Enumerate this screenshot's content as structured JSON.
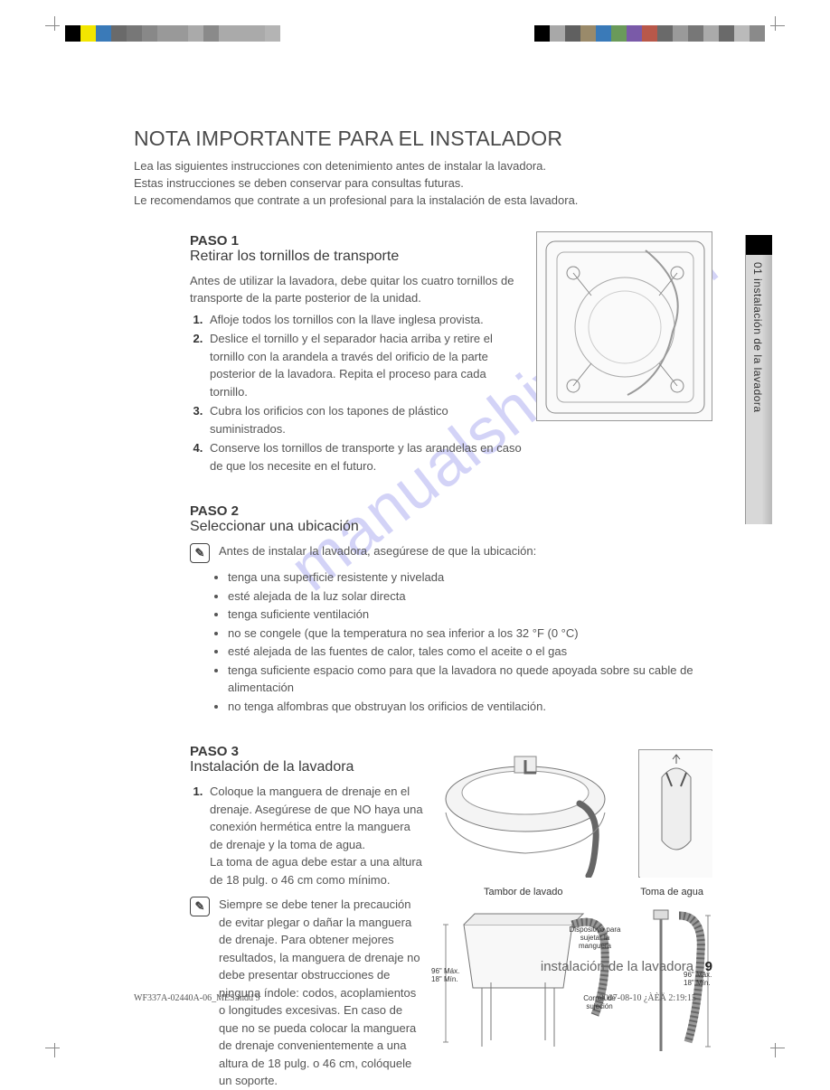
{
  "colorbars": {
    "left": [
      "#000000",
      "#f2e600",
      "#3a7ab8",
      "#6a6a6a",
      "#777777",
      "#888888",
      "#999999",
      "#999999",
      "#aaaaaa",
      "#8a8a8a",
      "#aaaaaa",
      "#aaaaaa",
      "#aaaaaa",
      "#b4b4b4"
    ],
    "right": [
      "#ffffff",
      "#000000",
      "#a8a8a8",
      "#606060",
      "#9a8a6a",
      "#3a7ab8",
      "#6a9a5a",
      "#7a5aa8",
      "#b8584a",
      "#6a6a6a",
      "#9a9a9a",
      "#777777",
      "#aaaaaa",
      "#6a6a6a",
      "#bababa",
      "#8a8a8a"
    ]
  },
  "side_tab": "01 instalación de la lavadora",
  "title": "NOTA IMPORTANTE PARA EL INSTALADOR",
  "intro_lines": [
    "Lea las siguientes instrucciones con detenimiento antes de instalar la lavadora.",
    "Estas instrucciones se deben conservar para consultas futuras.",
    "Le recomendamos que contrate a un profesional para la instalación de esta lavadora."
  ],
  "paso1": {
    "label": "PASO 1",
    "subtitle": "Retirar los tornillos de transporte",
    "lead": "Antes de utilizar la lavadora, debe quitar los cuatro tornillos de transporte de la parte posterior de la unidad.",
    "items": [
      "Afloje todos los tornillos con la llave inglesa provista.",
      "Deslice el tornillo y el separador hacia arriba y retire el tornillo con la arandela a través del orificio de la parte posterior de la lavadora. Repita el proceso para cada tornillo.",
      "Cubra los orificios con los tapones de plástico suministrados.",
      "Conserve los tornillos de transporte y las arandelas en caso de que los necesite en el futuro."
    ]
  },
  "paso2": {
    "label": "PASO 2",
    "subtitle": "Seleccionar una ubicación",
    "note": "Antes de instalar la lavadora, asegúrese de que la ubicación:",
    "bullets": [
      "tenga una superficie resistente y nivelada",
      "esté alejada de la luz solar directa",
      "tenga suficiente ventilación",
      "no se congele (que la temperatura no sea inferior a los 32 °F (0 °C)",
      "esté alejada de las fuentes de calor, tales como el aceite o el gas",
      "tenga suficiente espacio como para que la lavadora no quede apoyada sobre su cable de alimentación",
      "no tenga alfombras que obstruyan los orificios de ventilación."
    ]
  },
  "paso3": {
    "label": "PASO 3",
    "subtitle": "Instalación de la lavadora",
    "items": [
      "Coloque la manguera de drenaje en el drenaje. Asegúrese de que NO haya una conexión hermética entre la manguera de drenaje y la toma de agua.\nLa toma de agua debe estar a una altura de 18 pulg. o 46 cm como mínimo."
    ],
    "caution": "Siempre se debe tener la precaución de evitar plegar o dañar la manguera de drenaje. Para obtener mejores resultados, la manguera de drenaje no debe presentar obstrucciones de ninguna índole: codos, acoplamientos o longitudes excesivas. En caso de que no se pueda colocar la manguera de drenaje convenientemente a una altura de 18 pulg. o 46 cm, colóquele un soporte.",
    "diagram_left_label": "Tambor de lavado",
    "diagram_right_label": "Toma de agua",
    "callout_device": "Dispositivo para sujetar la manguera",
    "callout_strap": "Correa de sujeción",
    "height_label": "96\" Máx.\n18\" Mín."
  },
  "footer": {
    "text": "instalación de la lavadora _",
    "page": "9"
  },
  "printline": {
    "left": "WF337A-02440A-06_MES.indd   9",
    "right": "2007-08-10   ¿ÀÈÄ 2:19:15"
  },
  "watermark": "manualshive.com"
}
